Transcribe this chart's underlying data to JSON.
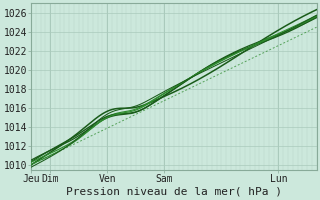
{
  "title": "",
  "xlabel": "Pression niveau de la mer( hPa )",
  "ylabel": "",
  "ylim": [
    1009.5,
    1027
  ],
  "yticks": [
    1010,
    1012,
    1014,
    1016,
    1018,
    1020,
    1022,
    1024,
    1026
  ],
  "xtick_labels": [
    "Jeu",
    "Dim",
    "Ven",
    "Sam",
    "Lun"
  ],
  "xtick_positions": [
    0,
    16,
    64,
    112,
    208
  ],
  "total_points": 240,
  "bg_color": "#cce8dc",
  "plot_bg_color": "#cce8dc",
  "line_color_dark": "#1a5c1a",
  "line_color_mid": "#2e8b2e",
  "grid_color": "#aacabc",
  "grid_color_fine": "#b8d4c8",
  "border_color": "#88aa99",
  "xlabel_fontsize": 8,
  "tick_fontsize": 7
}
